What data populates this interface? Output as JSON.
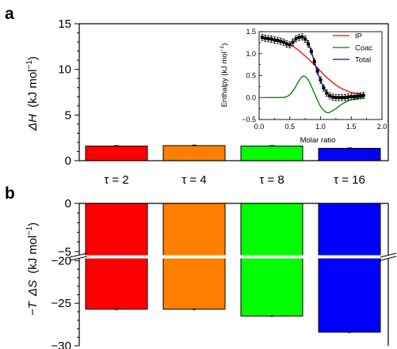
{
  "chart_data": [
    {
      "panel": "a",
      "type": "bar",
      "categories": [
        "τ = 2",
        "τ = 4",
        "τ = 8",
        "τ = 16"
      ],
      "values": [
        1.6,
        1.65,
        1.6,
        1.35
      ],
      "errors": [
        0.05,
        0.05,
        0.05,
        0.05
      ],
      "colors": [
        "#ff0000",
        "#ff8000",
        "#00ff00",
        "#0000ff"
      ],
      "ylim": [
        0,
        15
      ],
      "yticks": [
        "0",
        "5",
        "10",
        "15"
      ],
      "ylabel_symbol": "ΔH",
      "ylabel_units": "(kJ mol",
      "ylabel_exp": "−1",
      "ylabel_close": ")"
    },
    {
      "panel": "b",
      "type": "bar",
      "categories": [
        "τ = 2",
        "τ = 4",
        "τ = 8",
        "τ = 16"
      ],
      "values": [
        -25.7,
        -25.7,
        -26.5,
        -28.4
      ],
      "errors": [
        0.15,
        0.15,
        0.15,
        0.15
      ],
      "colors": [
        "#ff0000",
        "#ff8000",
        "#00ff00",
        "#0000ff"
      ],
      "axis_break": [
        -5.5,
        -19.5
      ],
      "ylim": [
        -30,
        0
      ],
      "yticks": [
        "0",
        "−5",
        "−20",
        "−25",
        "−30"
      ],
      "ylabel_prefix": "−T",
      "ylabel_symbol": "ΔS",
      "ylabel_units": "(kJ mol",
      "ylabel_exp": "−1",
      "ylabel_close": ")"
    },
    {
      "panel": "inset",
      "type": "line",
      "xlabel": "Molar ratio",
      "ylabel_text": "Enthalpy (kJ mol",
      "ylabel_exp": "−1",
      "ylabel_close": ")",
      "xlim": [
        0,
        2.0
      ],
      "ylim": [
        -0.5,
        1.5
      ],
      "xticks": [
        "0.0",
        "0.5",
        "1.0",
        "1.5",
        "2.0"
      ],
      "yticks": [
        "−0.5",
        "0.0",
        "0.5",
        "1.0",
        "1.5"
      ],
      "legend_position": "top-right",
      "series": [
        {
          "name": "IP",
          "color": "#ff0000",
          "x": [
            0.05,
            0.2,
            0.4,
            0.6,
            0.8,
            1.0,
            1.1,
            1.2,
            1.3,
            1.4,
            1.5,
            1.6,
            1.7
          ],
          "y": [
            1.35,
            1.33,
            1.27,
            1.12,
            0.88,
            0.6,
            0.46,
            0.34,
            0.24,
            0.17,
            0.12,
            0.09,
            0.07
          ]
        },
        {
          "name": "Coac",
          "color": "#008000",
          "x": [
            0.05,
            0.3,
            0.45,
            0.55,
            0.65,
            0.72,
            0.8,
            0.9,
            1.0,
            1.1,
            1.2,
            1.35,
            1.5,
            1.7
          ],
          "y": [
            0.0,
            0.0,
            0.02,
            0.15,
            0.38,
            0.49,
            0.4,
            0.1,
            -0.2,
            -0.34,
            -0.3,
            -0.15,
            -0.05,
            0.0
          ]
        },
        {
          "name": "Total",
          "color": "#0000ff",
          "x": [
            0.05,
            0.2,
            0.35,
            0.45,
            0.55,
            0.62,
            0.7,
            0.78,
            0.85,
            0.92,
            1.0,
            1.08,
            1.15,
            1.25,
            1.35,
            1.5,
            1.7
          ],
          "y": [
            1.36,
            1.33,
            1.29,
            1.22,
            1.26,
            1.36,
            1.38,
            1.3,
            1.05,
            0.72,
            0.38,
            0.16,
            0.05,
            0.0,
            0.0,
            0.02,
            0.05
          ]
        }
      ],
      "points": {
        "x": [
          0.05,
          0.1,
          0.15,
          0.2,
          0.25,
          0.3,
          0.35,
          0.4,
          0.45,
          0.5,
          0.55,
          0.6,
          0.65,
          0.7,
          0.75,
          0.8,
          0.85,
          0.9,
          0.95,
          1.0,
          1.05,
          1.1,
          1.15,
          1.2,
          1.25,
          1.3,
          1.35,
          1.4,
          1.45,
          1.5,
          1.55,
          1.6,
          1.65,
          1.7
        ],
        "y": [
          1.37,
          1.35,
          1.34,
          1.33,
          1.31,
          1.3,
          1.28,
          1.26,
          1.22,
          1.2,
          1.26,
          1.34,
          1.37,
          1.38,
          1.33,
          1.22,
          1.05,
          0.82,
          0.6,
          0.4,
          0.22,
          0.1,
          0.04,
          0.01,
          0.0,
          0.0,
          0.0,
          0.0,
          0.01,
          0.02,
          0.02,
          0.03,
          0.04,
          0.05
        ]
      }
    }
  ]
}
